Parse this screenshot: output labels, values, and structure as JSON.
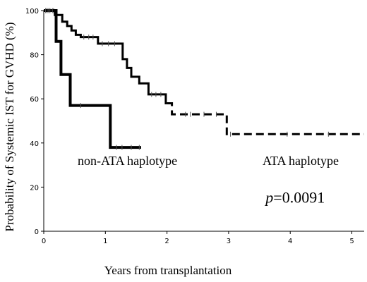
{
  "chart_data": {
    "type": "line",
    "chart_kind": "kaplan-meier step plot",
    "xlabel": "Years from transplantation",
    "ylabel": "Probability of Systemic IST for GVHD (%)",
    "xlim": [
      0,
      5.2
    ],
    "ylim": [
      0,
      100
    ],
    "xticks": [
      0,
      1,
      2,
      3,
      4,
      5
    ],
    "yticks": [
      0,
      20,
      40,
      60,
      80,
      100
    ],
    "grid": false,
    "legend": "none",
    "series": [
      {
        "name": "non-ATA haplotype",
        "line_style": "solid",
        "line_weight": "thick",
        "color": "#000000",
        "steps": [
          [
            0,
            100
          ],
          [
            0.2,
            100
          ],
          [
            0.2,
            86
          ],
          [
            0.28,
            86
          ],
          [
            0.28,
            71
          ],
          [
            0.43,
            71
          ],
          [
            0.43,
            57
          ],
          [
            1.08,
            57
          ],
          [
            1.08,
            38
          ],
          [
            1.58,
            38
          ]
        ],
        "censor_marks": [
          [
            0.03,
            100
          ],
          [
            0.07,
            100
          ],
          [
            0.1,
            100
          ],
          [
            0.14,
            100
          ],
          [
            0.6,
            57
          ],
          [
            1.18,
            38
          ],
          [
            1.27,
            38
          ],
          [
            1.42,
            38
          ],
          [
            1.55,
            38
          ]
        ]
      },
      {
        "name": "ATA haplotype",
        "line_style": "solid then dashed after 2.0",
        "line_weight": "medium",
        "color": "#000000",
        "solid_steps": [
          [
            0,
            100
          ],
          [
            0.18,
            100
          ],
          [
            0.18,
            98
          ],
          [
            0.3,
            98
          ],
          [
            0.3,
            95
          ],
          [
            0.38,
            95
          ],
          [
            0.38,
            93
          ],
          [
            0.45,
            93
          ],
          [
            0.45,
            91
          ],
          [
            0.52,
            91
          ],
          [
            0.52,
            89
          ],
          [
            0.6,
            89
          ],
          [
            0.6,
            88
          ],
          [
            0.88,
            88
          ],
          [
            0.88,
            85
          ],
          [
            1.28,
            85
          ],
          [
            1.28,
            78
          ],
          [
            1.35,
            78
          ],
          [
            1.35,
            74
          ],
          [
            1.42,
            74
          ],
          [
            1.42,
            70
          ],
          [
            1.55,
            70
          ],
          [
            1.55,
            67
          ],
          [
            1.7,
            67
          ],
          [
            1.7,
            62
          ],
          [
            1.98,
            62
          ],
          [
            1.98,
            58
          ],
          [
            2.0,
            58
          ]
        ],
        "dashed_steps": [
          [
            2.0,
            58
          ],
          [
            2.08,
            58
          ],
          [
            2.08,
            53
          ],
          [
            2.97,
            53
          ],
          [
            2.97,
            44
          ],
          [
            5.2,
            44
          ]
        ],
        "censor_marks": [
          [
            0.05,
            100
          ],
          [
            0.1,
            100
          ],
          [
            0.16,
            100
          ],
          [
            0.65,
            88
          ],
          [
            0.73,
            88
          ],
          [
            0.8,
            88
          ],
          [
            0.95,
            85
          ],
          [
            1.05,
            85
          ],
          [
            1.15,
            85
          ],
          [
            1.75,
            62
          ],
          [
            1.82,
            62
          ],
          [
            1.9,
            62
          ],
          [
            2.3,
            53
          ],
          [
            2.38,
            53
          ],
          [
            2.6,
            53
          ],
          [
            2.8,
            53
          ],
          [
            3.03,
            44
          ],
          [
            3.95,
            44
          ],
          [
            4.62,
            44
          ]
        ]
      }
    ],
    "annotations": [
      {
        "text": "non-ATA haplotype",
        "x": 0.55,
        "y": 30
      },
      {
        "text": "ATA haplotype",
        "x": 3.55,
        "y": 30
      },
      {
        "text_italic": "p",
        "text": "=0.0091",
        "x": 3.6,
        "y": 13
      }
    ]
  }
}
